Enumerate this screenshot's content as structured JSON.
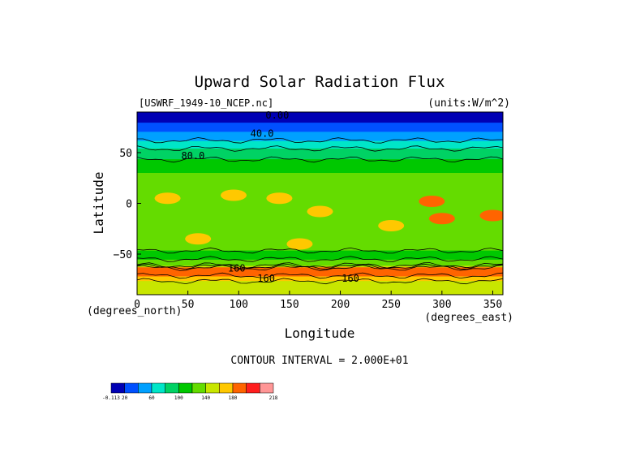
{
  "chart_data": {
    "type": "heatmap",
    "title": "Upward Solar Radiation Flux",
    "file_label": "[USWRF_1949-10_NCEP.nc]",
    "units_label": "(units:W/m^2)",
    "xlabel": "Longitude",
    "ylabel": "Latitude",
    "x_unit_label": "(degrees_east)",
    "y_unit_label": "(degrees_north)",
    "xlim": [
      0,
      360
    ],
    "ylim": [
      -90,
      90
    ],
    "x_ticks": [
      0,
      50,
      100,
      150,
      200,
      250,
      300,
      350
    ],
    "y_ticks": [
      50,
      0,
      -50
    ],
    "contour_interval_text": "CONTOUR INTERVAL = 2.000E+01",
    "contour_labels": [
      {
        "text": "0.00",
        "lon": 138,
        "lat": 87
      },
      {
        "text": "40.0",
        "lon": 123,
        "lat": 69
      },
      {
        "text": "80.0",
        "lon": 55,
        "lat": 47
      },
      {
        "text": "160",
        "lon": 98,
        "lat": -64
      },
      {
        "text": "160",
        "lon": 127,
        "lat": -74
      },
      {
        "text": "160",
        "lon": 210,
        "lat": -74
      }
    ],
    "colorbar": {
      "tick_labels": [
        "-0.113",
        "20",
        "60",
        "100",
        "140",
        "180",
        "218"
      ],
      "levels": [
        -0.113,
        20,
        40,
        60,
        80,
        100,
        120,
        140,
        160,
        180,
        200,
        218
      ],
      "colors": [
        "#0000b4",
        "#0050ff",
        "#00a0ff",
        "#00e6c8",
        "#00d264",
        "#00c800",
        "#64dc00",
        "#c8e600",
        "#ffc800",
        "#ff6400",
        "#ff1e1e",
        "#ff9696"
      ]
    },
    "latitude_profile": [
      {
        "lat": 90,
        "value": 5
      },
      {
        "lat": 80,
        "value": 20
      },
      {
        "lat": 70,
        "value": 40
      },
      {
        "lat": 60,
        "value": 65
      },
      {
        "lat": 50,
        "value": 90
      },
      {
        "lat": 40,
        "value": 105
      },
      {
        "lat": 30,
        "value": 120
      },
      {
        "lat": 20,
        "value": 130
      },
      {
        "lat": 10,
        "value": 135
      },
      {
        "lat": 0,
        "value": 130
      },
      {
        "lat": -10,
        "value": 135
      },
      {
        "lat": -20,
        "value": 140
      },
      {
        "lat": -30,
        "value": 135
      },
      {
        "lat": -40,
        "value": 130
      },
      {
        "lat": -50,
        "value": 115
      },
      {
        "lat": -60,
        "value": 125
      },
      {
        "lat": -65,
        "value": 200
      },
      {
        "lat": -70,
        "value": 185
      },
      {
        "lat": -75,
        "value": 165
      },
      {
        "lat": -80,
        "value": 150
      },
      {
        "lat": -90,
        "value": 140
      }
    ],
    "hotspots": [
      {
        "lon": 30,
        "lat": 5,
        "value": 170
      },
      {
        "lon": 95,
        "lat": 8,
        "value": 175
      },
      {
        "lon": 140,
        "lat": 5,
        "value": 165
      },
      {
        "lon": 180,
        "lat": -8,
        "value": 165
      },
      {
        "lon": 290,
        "lat": 2,
        "value": 180
      },
      {
        "lon": 300,
        "lat": -15,
        "value": 185
      },
      {
        "lon": 350,
        "lat": -12,
        "value": 190
      },
      {
        "lon": 160,
        "lat": -40,
        "value": 170
      },
      {
        "lon": 250,
        "lat": -22,
        "value": 160
      },
      {
        "lon": 60,
        "lat": -35,
        "value": 160
      }
    ]
  }
}
